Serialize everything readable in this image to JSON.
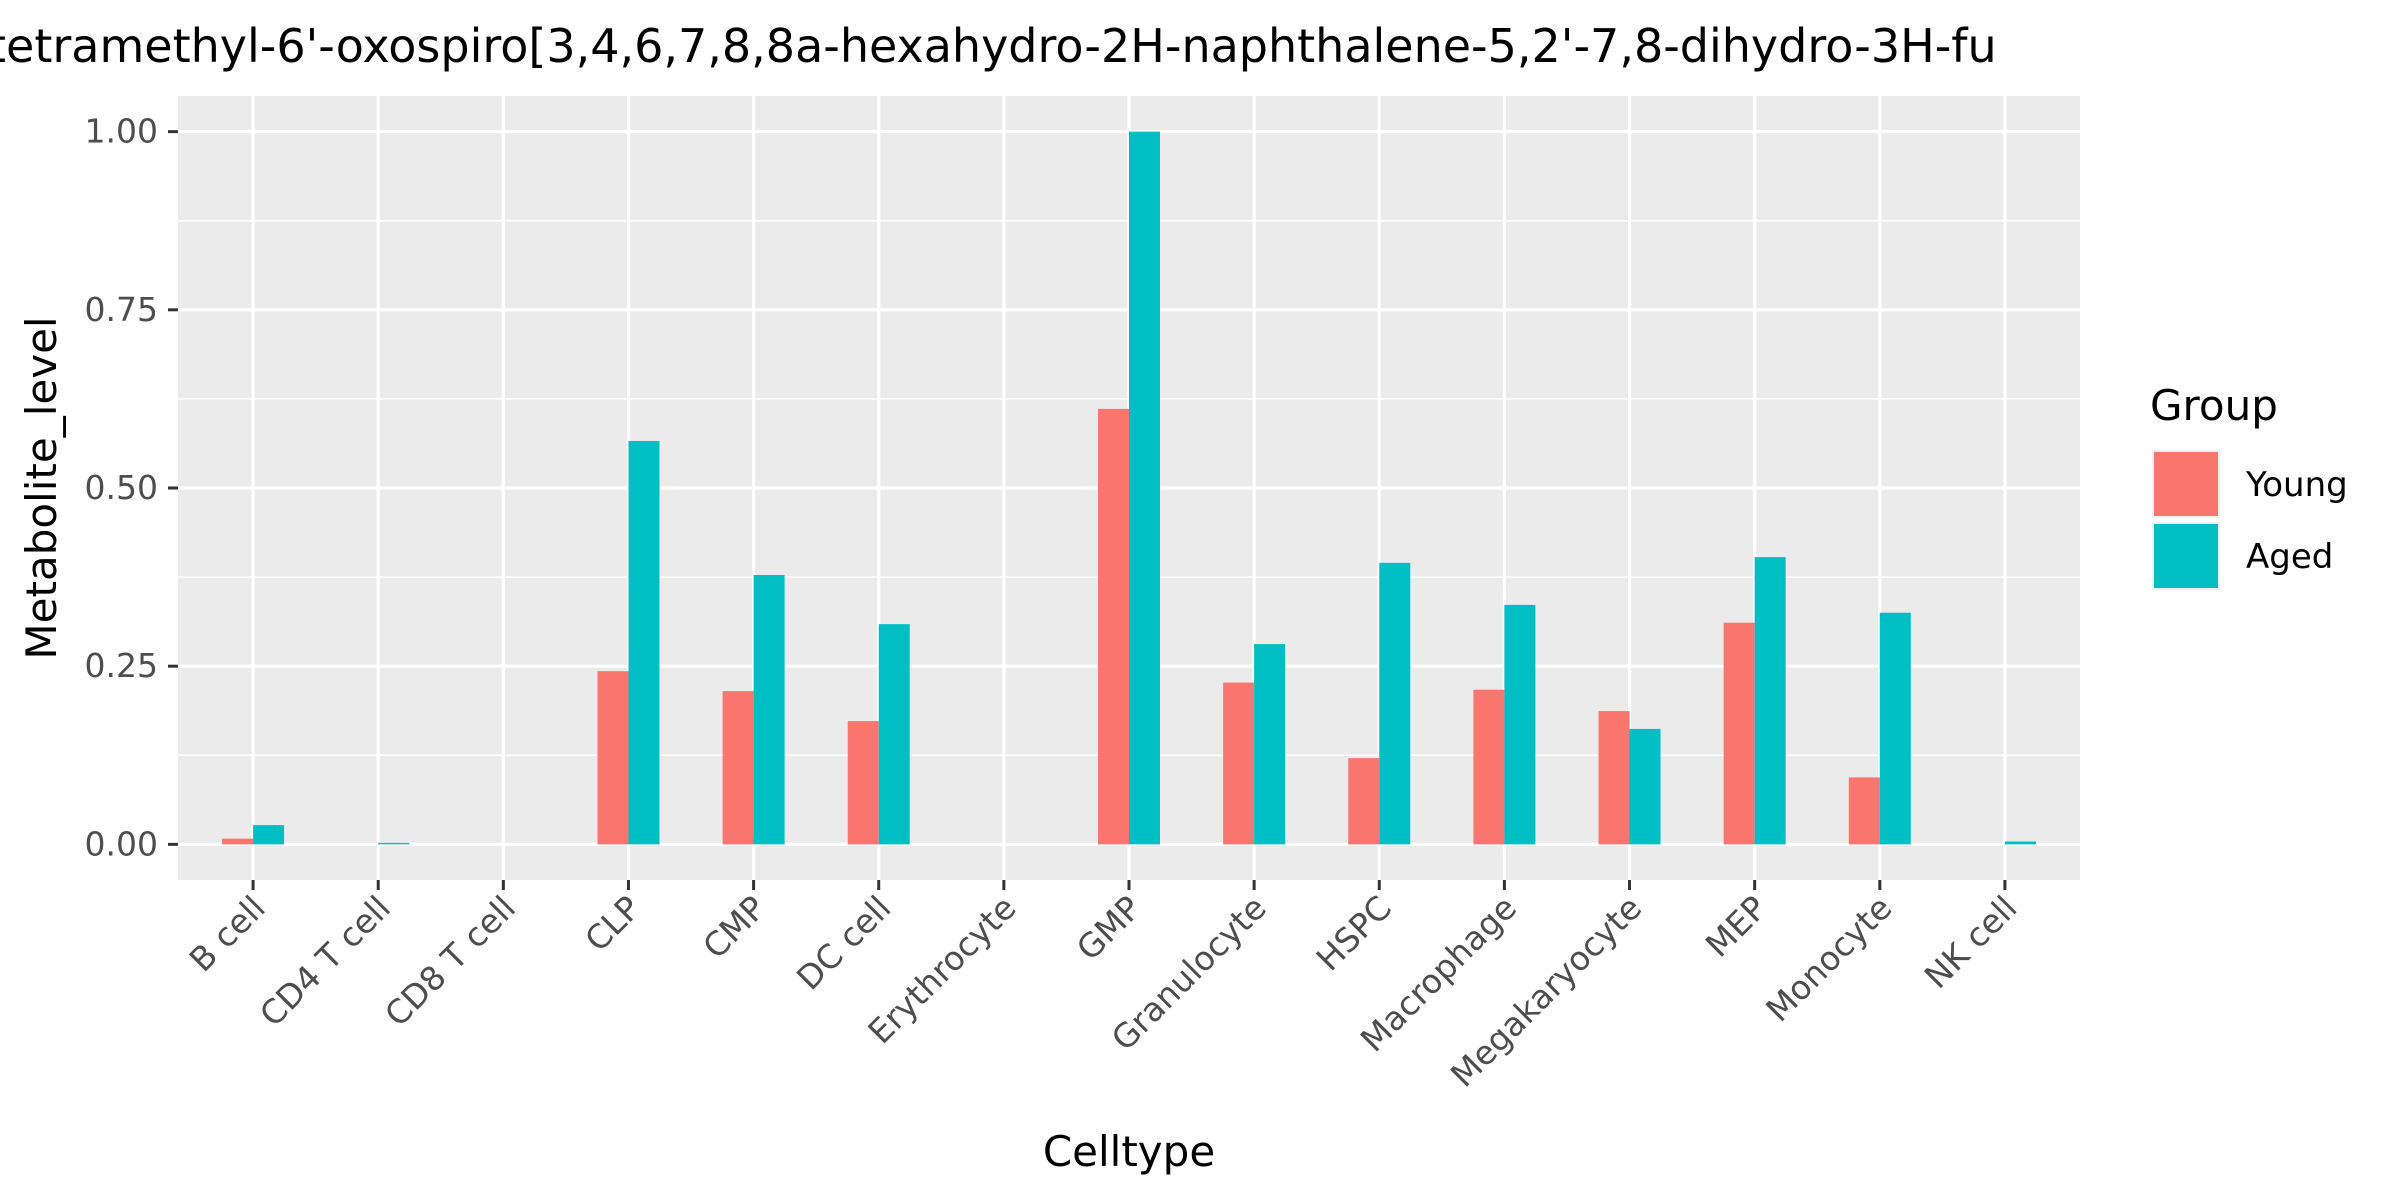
{
  "chart_data": {
    "type": "bar",
    "title": "tetramethyl-6'-oxospiro[3,4,6,7,8,8a-hexahydro-2H-naphthalene-5,2'-7,8-dihydro-3H-fu",
    "xlabel": "Celltype",
    "ylabel": "Metabolite_level",
    "ylim": [
      -0.05,
      1.05
    ],
    "yticks": [
      0.0,
      0.25,
      0.5,
      0.75,
      1.0
    ],
    "ytick_labels": [
      "0.00",
      "0.25",
      "0.50",
      "0.75",
      "1.00"
    ],
    "grid": true,
    "legend": {
      "title": "Group",
      "position": "right"
    },
    "categories": [
      "B cell",
      "CD4 T cell",
      "CD8 T cell",
      "CLP",
      "CMP",
      "DC cell",
      "Erythrocyte",
      "GMP",
      "Granulocyte",
      "HSPC",
      "Macrophage",
      "Megakaryocyte",
      "MEP",
      "Monocyte",
      "NK cell"
    ],
    "series": [
      {
        "name": "Young",
        "color": "#F8766D",
        "values": [
          0.008,
          0.0,
          0.0,
          0.243,
          0.215,
          0.173,
          0.0,
          0.611,
          0.227,
          0.121,
          0.217,
          0.187,
          0.311,
          0.094,
          0.0
        ]
      },
      {
        "name": "Aged",
        "color": "#00BFC4",
        "values": [
          0.027,
          0.002,
          0.0,
          0.566,
          0.378,
          0.309,
          0.0,
          1.0,
          0.281,
          0.395,
          0.336,
          0.162,
          0.403,
          0.325,
          0.004
        ]
      }
    ]
  }
}
